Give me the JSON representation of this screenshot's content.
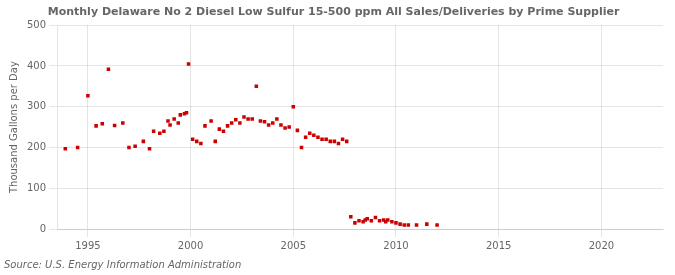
{
  "chart_data": {
    "type": "scatter",
    "title": "Monthly Delaware No 2 Diesel Low Sulfur 15-500 ppm All Sales/Deliveries by Prime Supplier",
    "ylabel": "Thousand Gallons per Day",
    "annotations": [
      "Source: U.S. Energy Information Administration"
    ],
    "color": "#cc0000",
    "marker": "square",
    "grid": true,
    "xlim": [
      1993.5,
      2023
    ],
    "xticks": [
      1995,
      2000,
      2005,
      2010,
      2015,
      2020
    ],
    "ylim": [
      0,
      500
    ],
    "yticks": [
      0,
      100,
      200,
      300,
      400,
      500
    ],
    "x": [
      1993.9,
      1994.5,
      1995.0,
      1995.4,
      1995.7,
      1996.0,
      1996.3,
      1996.7,
      1997.0,
      1997.3,
      1997.7,
      1998.0,
      1998.2,
      1998.5,
      1998.7,
      1998.9,
      1999.0,
      1999.2,
      1999.4,
      1999.5,
      1999.7,
      1999.8,
      1999.9,
      2000.1,
      2000.3,
      2000.5,
      2000.7,
      2001.0,
      2001.2,
      2001.4,
      2001.6,
      2001.8,
      2002.0,
      2002.2,
      2002.4,
      2002.6,
      2002.8,
      2003.0,
      2003.2,
      2003.4,
      2003.6,
      2003.8,
      2004.0,
      2004.2,
      2004.4,
      2004.6,
      2004.8,
      2005.0,
      2005.2,
      2005.4,
      2005.6,
      2005.8,
      2006.0,
      2006.2,
      2006.4,
      2006.6,
      2006.8,
      2007.0,
      2007.2,
      2007.4,
      2007.6,
      2007.8,
      2008.0,
      2008.2,
      2008.4,
      2008.5,
      2008.6,
      2008.8,
      2009.0,
      2009.2,
      2009.4,
      2009.5,
      2009.6,
      2009.8,
      2010.0,
      2010.2,
      2010.4,
      2010.6,
      2011.0,
      2011.5,
      2012.0
    ],
    "values": [
      197,
      200,
      327,
      253,
      258,
      392,
      254,
      260,
      200,
      203,
      215,
      197,
      240,
      235,
      240,
      265,
      255,
      270,
      260,
      280,
      283,
      285,
      405,
      220,
      215,
      210,
      253,
      265,
      215,
      245,
      240,
      253,
      260,
      268,
      260,
      275,
      270,
      270,
      350,
      265,
      263,
      255,
      260,
      270,
      255,
      248,
      250,
      300,
      242,
      200,
      225,
      235,
      230,
      225,
      220,
      220,
      215,
      215,
      210,
      220,
      215,
      30,
      15,
      20,
      18,
      22,
      25,
      20,
      28,
      20,
      22,
      18,
      22,
      18,
      15,
      12,
      10,
      10,
      10,
      12,
      10
    ]
  }
}
